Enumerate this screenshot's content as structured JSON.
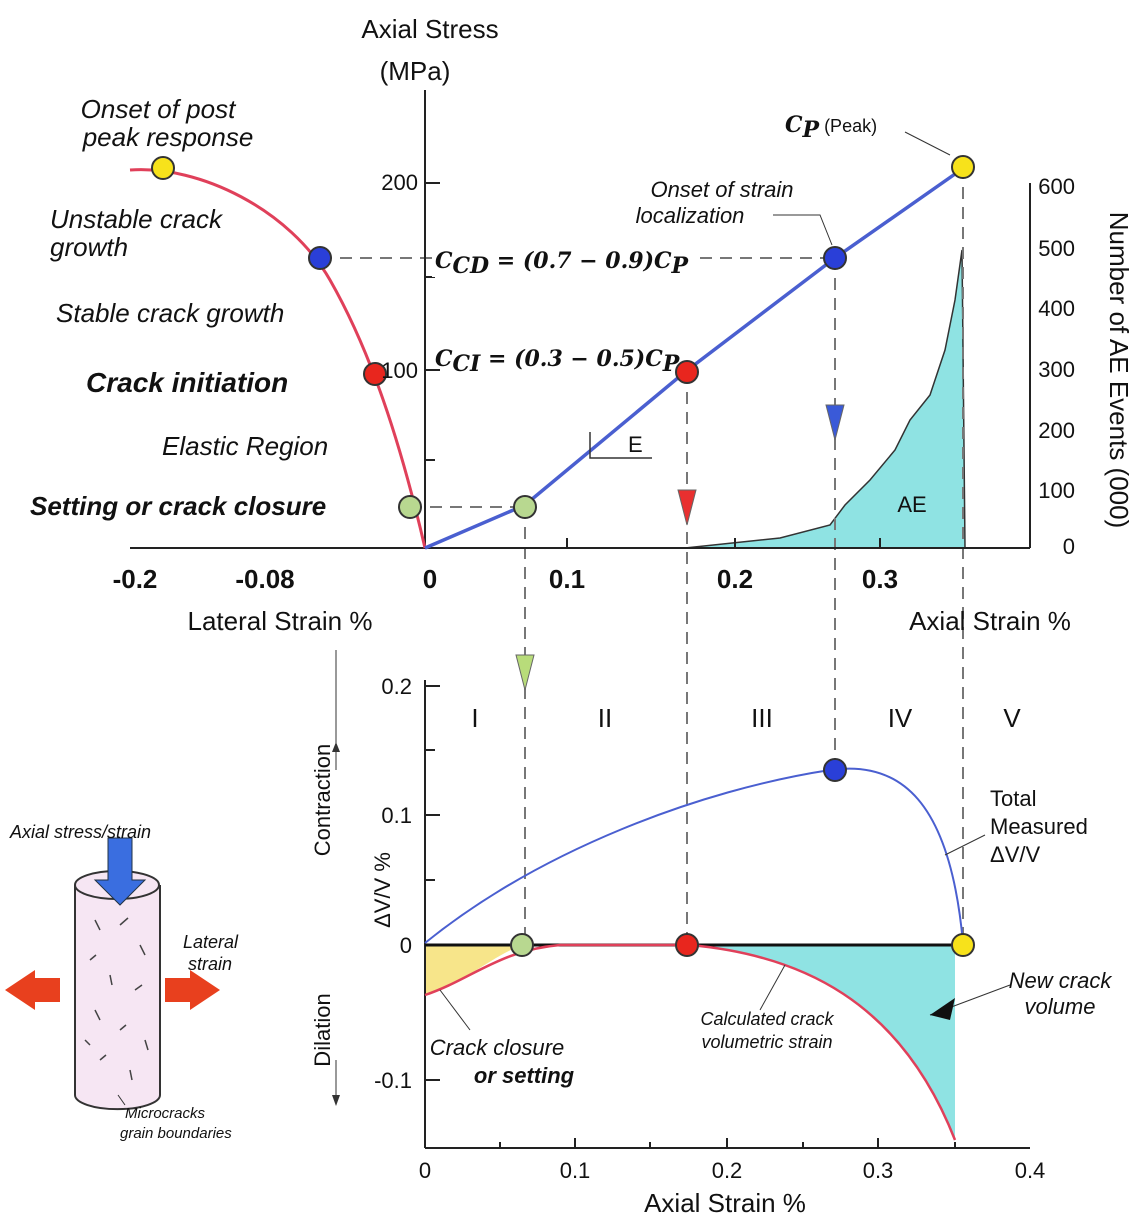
{
  "top": {
    "y_title": [
      "Axial Stress",
      "(MPa)"
    ],
    "y_ticks": [
      "200",
      "100"
    ],
    "lateral_ticks": [
      "-0.2",
      "-0.08",
      "0"
    ],
    "axial_ticks": [
      "0.1",
      "0.2",
      "0.3"
    ],
    "x_left_title": "Lateral Strain %",
    "x_right_title": "Axial Strain %",
    "y2_title": "Number of AE Events (000)",
    "y2_ticks": [
      "600",
      "500",
      "400",
      "300",
      "200",
      "100",
      "0"
    ],
    "peak": {
      "c": "C",
      "sub": "P",
      "rest": " (Peak)"
    },
    "ccd": {
      "c": "C",
      "sub": "CD",
      "rest": " = (0.7 − 0.9)C",
      "sub2": "P"
    },
    "cci": {
      "c": "C",
      "sub": "CI",
      "rest": " = (0.3 − 0.5)C",
      "sub2": "P"
    },
    "onset_localization": [
      "Onset of strain",
      "localization"
    ],
    "e_label": "E",
    "ae_label": "AE",
    "left_labels": {
      "post_peak": [
        "Onset of post",
        "peak response"
      ],
      "unstable": [
        "Unstable crack",
        "growth"
      ],
      "stable": "Stable crack growth",
      "initiation": "Crack initiation",
      "elastic": "Elastic Region",
      "closure": "Setting or crack closure"
    }
  },
  "bottom": {
    "y_ticks": [
      "0.2",
      "0.1",
      "0",
      "-0.1"
    ],
    "x_ticks": [
      "0",
      "0.1",
      "0.2",
      "0.3",
      "0.4"
    ],
    "x_title": "Axial Strain %",
    "y_title": "ΔV/V %",
    "contraction": "Contraction",
    "dilation": "Dilation",
    "phases": [
      "I",
      "II",
      "III",
      "IV",
      "V"
    ],
    "total": [
      "Total",
      "Measured",
      "ΔV/V"
    ],
    "new_crack": [
      "New crack",
      "volume"
    ],
    "calculated": [
      "Calculated crack",
      "volumetric strain"
    ],
    "closure": [
      "Crack closure",
      "or setting"
    ]
  },
  "specimen": {
    "axial": "Axial stress/strain",
    "lateral": [
      "Lateral",
      "strain"
    ],
    "microcracks": [
      "Microcracks",
      "grain boundaries"
    ]
  }
}
